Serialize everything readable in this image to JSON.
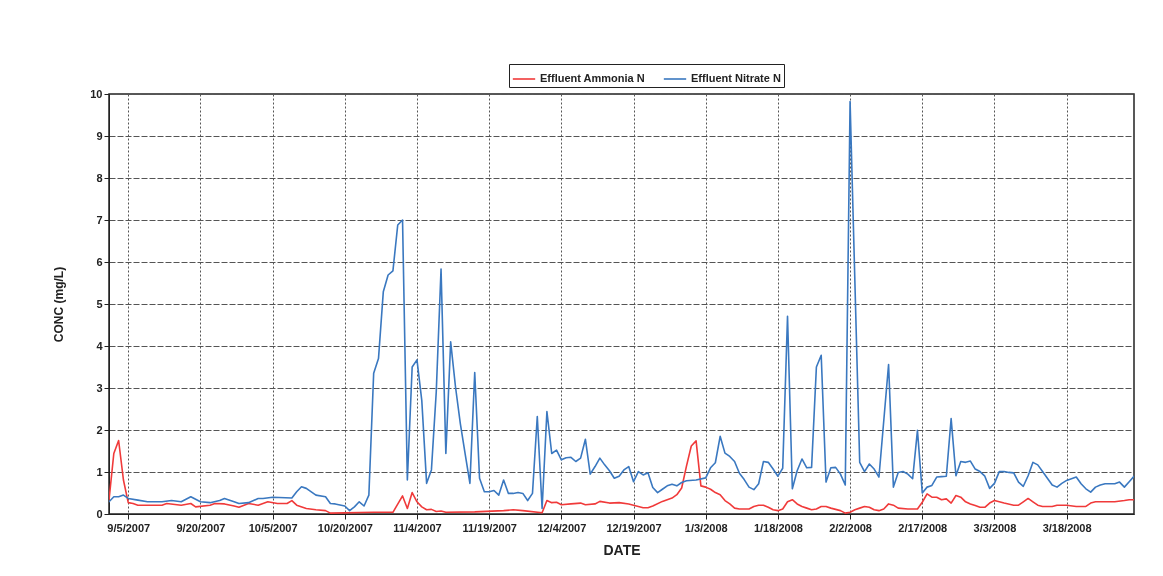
{
  "chart_data": {
    "type": "line",
    "xlabel": "DATE",
    "ylabel": "CONC (mg/L)",
    "xlim": [
      "2007-09-01",
      "2008-04-01"
    ],
    "ylim": [
      0,
      10
    ],
    "xticks": [
      {
        "value": "2007-09-05",
        "label": "9/5/2007"
      },
      {
        "value": "2007-09-20",
        "label": "9/20/2007"
      },
      {
        "value": "2007-10-05",
        "label": "10/5/2007"
      },
      {
        "value": "2007-10-20",
        "label": "10/20/2007"
      },
      {
        "value": "2007-11-04",
        "label": "11/4/2007"
      },
      {
        "value": "2007-11-19",
        "label": "11/19/2007"
      },
      {
        "value": "2007-12-04",
        "label": "12/4/2007"
      },
      {
        "value": "2007-12-19",
        "label": "12/19/2007"
      },
      {
        "value": "2008-01-03",
        "label": "1/3/2008"
      },
      {
        "value": "2008-01-18",
        "label": "1/18/2008"
      },
      {
        "value": "2008-02-02",
        "label": "2/2/2008"
      },
      {
        "value": "2008-02-17",
        "label": "2/17/2008"
      },
      {
        "value": "2008-03-03",
        "label": "3/3/2008"
      },
      {
        "value": "2008-03-18",
        "label": "3/18/2008"
      }
    ],
    "yticks": [
      0,
      1,
      2,
      3,
      4,
      5,
      6,
      7,
      8,
      9,
      10
    ],
    "grid": true,
    "legend": "top",
    "marker": "none",
    "line_style": "solid",
    "series": [
      {
        "name": "Effluent Ammonia N",
        "color": "#f03a3a",
        "x": [
          "2007-09-01",
          "2007-09-02",
          "2007-09-03",
          "2007-09-04",
          "2007-09-05",
          "2007-09-06",
          "2007-09-07",
          "2007-09-12",
          "2007-09-13",
          "2007-09-16",
          "2007-09-18",
          "2007-09-19",
          "2007-09-22",
          "2007-09-23",
          "2007-09-25",
          "2007-09-27",
          "2007-09-28",
          "2007-09-30",
          "2007-10-02",
          "2007-10-04",
          "2007-10-06",
          "2007-10-08",
          "2007-10-09",
          "2007-10-10",
          "2007-10-12",
          "2007-10-14",
          "2007-10-16",
          "2007-10-17",
          "2007-10-26",
          "2007-10-30",
          "2007-11-01",
          "2007-11-02",
          "2007-11-03",
          "2007-11-04",
          "2007-11-05",
          "2007-11-06",
          "2007-11-07",
          "2007-11-08",
          "2007-11-09",
          "2007-11-10",
          "2007-11-16",
          "2007-11-22",
          "2007-11-24",
          "2007-11-26",
          "2007-11-30",
          "2007-12-01",
          "2007-12-02",
          "2007-12-03",
          "2007-12-04",
          "2007-12-06",
          "2007-12-08",
          "2007-12-09",
          "2007-12-11",
          "2007-12-12",
          "2007-12-14",
          "2007-12-16",
          "2007-12-18",
          "2007-12-20",
          "2007-12-21",
          "2007-12-22",
          "2007-12-23",
          "2007-12-25",
          "2007-12-27",
          "2007-12-28",
          "2007-12-29",
          "2007-12-30",
          "2007-12-31",
          "2008-01-01",
          "2008-01-02",
          "2008-01-03",
          "2008-01-04",
          "2008-01-05",
          "2008-01-06",
          "2008-01-07",
          "2008-01-08",
          "2008-01-09",
          "2008-01-10",
          "2008-01-12",
          "2008-01-13",
          "2008-01-14",
          "2008-01-15",
          "2008-01-16",
          "2008-01-17",
          "2008-01-18",
          "2008-01-19",
          "2008-01-20",
          "2008-01-21",
          "2008-01-22",
          "2008-01-23",
          "2008-01-24",
          "2008-01-25",
          "2008-01-26",
          "2008-01-27",
          "2008-01-28",
          "2008-01-29",
          "2008-01-31",
          "2008-02-01",
          "2008-02-02",
          "2008-02-03",
          "2008-02-04",
          "2008-02-05",
          "2008-02-06",
          "2008-02-07",
          "2008-02-08",
          "2008-02-09",
          "2008-02-10",
          "2008-02-11",
          "2008-02-12",
          "2008-02-14",
          "2008-02-16",
          "2008-02-17",
          "2008-02-18",
          "2008-02-19",
          "2008-02-20",
          "2008-02-21",
          "2008-02-22",
          "2008-02-23",
          "2008-02-24",
          "2008-02-25",
          "2008-02-26",
          "2008-02-27",
          "2008-02-28",
          "2008-02-29",
          "2008-03-01",
          "2008-03-02",
          "2008-03-03",
          "2008-03-04",
          "2008-03-05",
          "2008-03-07",
          "2008-03-08",
          "2008-03-09",
          "2008-03-10",
          "2008-03-11",
          "2008-03-12",
          "2008-03-13",
          "2008-03-15",
          "2008-03-16",
          "2008-03-18",
          "2008-03-20",
          "2008-03-22",
          "2008-03-23",
          "2008-03-24",
          "2008-03-26",
          "2008-03-28",
          "2008-03-30",
          "2008-03-31",
          "2008-04-01"
        ],
        "values": [
          0.33,
          1.44,
          1.75,
          0.81,
          0.27,
          0.25,
          0.21,
          0.21,
          0.25,
          0.21,
          0.25,
          0.17,
          0.21,
          0.25,
          0.24,
          0.19,
          0.16,
          0.25,
          0.21,
          0.29,
          0.25,
          0.25,
          0.32,
          0.21,
          0.13,
          0.1,
          0.08,
          0.02,
          0.04,
          0.04,
          0.43,
          0.13,
          0.51,
          0.29,
          0.17,
          0.1,
          0.11,
          0.06,
          0.07,
          0.04,
          0.05,
          0.08,
          0.1,
          0.08,
          0.03,
          0.32,
          0.27,
          0.28,
          0.22,
          0.24,
          0.26,
          0.22,
          0.24,
          0.3,
          0.26,
          0.27,
          0.24,
          0.18,
          0.15,
          0.15,
          0.19,
          0.3,
          0.38,
          0.46,
          0.62,
          1.14,
          1.62,
          1.74,
          0.67,
          0.64,
          0.59,
          0.51,
          0.46,
          0.32,
          0.24,
          0.14,
          0.12,
          0.12,
          0.18,
          0.21,
          0.21,
          0.16,
          0.1,
          0.08,
          0.12,
          0.29,
          0.34,
          0.24,
          0.18,
          0.14,
          0.1,
          0.12,
          0.18,
          0.18,
          0.14,
          0.08,
          0.02,
          0.04,
          0.1,
          0.14,
          0.18,
          0.16,
          0.1,
          0.08,
          0.12,
          0.24,
          0.21,
          0.14,
          0.12,
          0.12,
          0.28,
          0.48,
          0.4,
          0.4,
          0.34,
          0.36,
          0.26,
          0.44,
          0.4,
          0.29,
          0.24,
          0.2,
          0.16,
          0.16,
          0.26,
          0.32,
          0.29,
          0.26,
          0.21,
          0.21,
          0.29,
          0.37,
          0.29,
          0.21,
          0.18,
          0.18,
          0.21,
          0.21,
          0.18,
          0.18,
          0.26,
          0.29,
          0.29,
          0.29,
          0.32,
          0.34,
          0.34
        ]
      },
      {
        "name": "Effluent Nitrate N",
        "color": "#3a78c0",
        "x": [
          "2007-09-01",
          "2007-09-02",
          "2007-09-03",
          "2007-09-04",
          "2007-09-05",
          "2007-09-07",
          "2007-09-09",
          "2007-09-12",
          "2007-09-14",
          "2007-09-16",
          "2007-09-18",
          "2007-09-20",
          "2007-09-22",
          "2007-09-24",
          "2007-09-25",
          "2007-09-27",
          "2007-09-28",
          "2007-09-30",
          "2007-10-02",
          "2007-10-03",
          "2007-10-05",
          "2007-10-09",
          "2007-10-10",
          "2007-10-11",
          "2007-10-12",
          "2007-10-14",
          "2007-10-16",
          "2007-10-17",
          "2007-10-18",
          "2007-10-20",
          "2007-10-21",
          "2007-10-22",
          "2007-10-23",
          "2007-10-24",
          "2007-10-25",
          "2007-10-26",
          "2007-10-27",
          "2007-10-28",
          "2007-10-29",
          "2007-10-30",
          "2007-10-31",
          "2007-11-01",
          "2007-11-02",
          "2007-11-03",
          "2007-11-04",
          "2007-11-05",
          "2007-11-06",
          "2007-11-07",
          "2007-11-08",
          "2007-11-09",
          "2007-11-10",
          "2007-11-11",
          "2007-11-12",
          "2007-11-13",
          "2007-11-14",
          "2007-11-15",
          "2007-11-16",
          "2007-11-17",
          "2007-11-18",
          "2007-11-19",
          "2007-11-20",
          "2007-11-21",
          "2007-11-22",
          "2007-11-23",
          "2007-11-24",
          "2007-11-25",
          "2007-11-26",
          "2007-11-27",
          "2007-11-28",
          "2007-11-29",
          "2007-11-30",
          "2007-12-01",
          "2007-12-02",
          "2007-12-03",
          "2007-12-04",
          "2007-12-05",
          "2007-12-06",
          "2007-12-07",
          "2007-12-08",
          "2007-12-09",
          "2007-12-10",
          "2007-12-11",
          "2007-12-12",
          "2007-12-13",
          "2007-12-14",
          "2007-12-15",
          "2007-12-16",
          "2007-12-17",
          "2007-12-18",
          "2007-12-19",
          "2007-12-20",
          "2007-12-21",
          "2007-12-22",
          "2007-12-23",
          "2007-12-24",
          "2007-12-25",
          "2007-12-26",
          "2007-12-27",
          "2007-12-28",
          "2007-12-29",
          "2007-12-30",
          "2008-01-01",
          "2008-01-03",
          "2008-01-04",
          "2008-01-05",
          "2008-01-06",
          "2008-01-07",
          "2008-01-08",
          "2008-01-09",
          "2008-01-10",
          "2008-01-11",
          "2008-01-12",
          "2008-01-13",
          "2008-01-14",
          "2008-01-15",
          "2008-01-16",
          "2008-01-17",
          "2008-01-18",
          "2008-01-19",
          "2008-01-20",
          "2008-01-21",
          "2008-01-22",
          "2008-01-23",
          "2008-01-24",
          "2008-01-25",
          "2008-01-26",
          "2008-01-27",
          "2008-01-28",
          "2008-01-29",
          "2008-01-30",
          "2008-01-31",
          "2008-02-01",
          "2008-02-02",
          "2008-02-04",
          "2008-02-05",
          "2008-02-06",
          "2008-02-07",
          "2008-02-08",
          "2008-02-10",
          "2008-02-11",
          "2008-02-12",
          "2008-02-13",
          "2008-02-14",
          "2008-02-15",
          "2008-02-16",
          "2008-02-17",
          "2008-02-18",
          "2008-02-19",
          "2008-02-20",
          "2008-02-21",
          "2008-02-22",
          "2008-02-23",
          "2008-02-24",
          "2008-02-25",
          "2008-02-26",
          "2008-02-27",
          "2008-02-28",
          "2008-02-29",
          "2008-03-01",
          "2008-03-02",
          "2008-03-03",
          "2008-03-04",
          "2008-03-05",
          "2008-03-06",
          "2008-03-07",
          "2008-03-08",
          "2008-03-09",
          "2008-03-10",
          "2008-03-11",
          "2008-03-12",
          "2008-03-13",
          "2008-03-14",
          "2008-03-15",
          "2008-03-16",
          "2008-03-17",
          "2008-03-18",
          "2008-03-19",
          "2008-03-20",
          "2008-03-21",
          "2008-03-22",
          "2008-03-23",
          "2008-03-24",
          "2008-03-25",
          "2008-03-26",
          "2008-03-27",
          "2008-03-28",
          "2008-03-29",
          "2008-03-30",
          "2008-03-31",
          "2008-04-01"
        ],
        "values": [
          0.29,
          0.41,
          0.41,
          0.45,
          0.37,
          0.33,
          0.29,
          0.29,
          0.32,
          0.29,
          0.41,
          0.29,
          0.27,
          0.32,
          0.37,
          0.29,
          0.25,
          0.27,
          0.37,
          0.37,
          0.4,
          0.38,
          0.53,
          0.65,
          0.61,
          0.45,
          0.41,
          0.25,
          0.24,
          0.19,
          0.08,
          0.17,
          0.29,
          0.19,
          0.45,
          3.35,
          3.7,
          5.29,
          5.69,
          5.79,
          6.88,
          7.0,
          0.81,
          3.5,
          3.67,
          2.7,
          0.73,
          1.05,
          2.9,
          5.83,
          1.44,
          4.1,
          3.03,
          2.16,
          1.44,
          0.73,
          3.37,
          0.85,
          0.53,
          0.53,
          0.56,
          0.45,
          0.81,
          0.49,
          0.49,
          0.51,
          0.49,
          0.32,
          0.49,
          2.32,
          0.13,
          2.44,
          1.44,
          1.52,
          1.29,
          1.34,
          1.35,
          1.25,
          1.33,
          1.78,
          0.95,
          1.13,
          1.33,
          1.17,
          1.03,
          0.85,
          0.9,
          1.05,
          1.13,
          0.77,
          1.01,
          0.93,
          0.98,
          0.63,
          0.51,
          0.59,
          0.67,
          0.71,
          0.67,
          0.75,
          0.79,
          0.81,
          0.86,
          1.1,
          1.22,
          1.85,
          1.45,
          1.37,
          1.25,
          0.97,
          0.82,
          0.64,
          0.58,
          0.72,
          1.25,
          1.23,
          1.07,
          0.9,
          1.09,
          4.71,
          0.6,
          1.03,
          1.31,
          1.1,
          1.11,
          3.5,
          3.78,
          0.76,
          1.1,
          1.11,
          0.95,
          0.69,
          9.82,
          1.23,
          1.01,
          1.19,
          1.07,
          0.88,
          3.56,
          0.64,
          0.99,
          1.01,
          0.95,
          0.84,
          1.99,
          0.5,
          0.64,
          0.68,
          0.88,
          0.89,
          0.9,
          2.27,
          0.91,
          1.25,
          1.23,
          1.26,
          1.07,
          1.01,
          0.9,
          0.61,
          0.73,
          1.01,
          1.01,
          0.99,
          0.98,
          0.76,
          0.66,
          0.91,
          1.23,
          1.17,
          1.01,
          0.85,
          0.69,
          0.64,
          0.73,
          0.8,
          0.84,
          0.88,
          0.72,
          0.6,
          0.52,
          0.64,
          0.69,
          0.72,
          0.72,
          0.72,
          0.76,
          0.64,
          0.77,
          0.9
        ]
      }
    ]
  }
}
